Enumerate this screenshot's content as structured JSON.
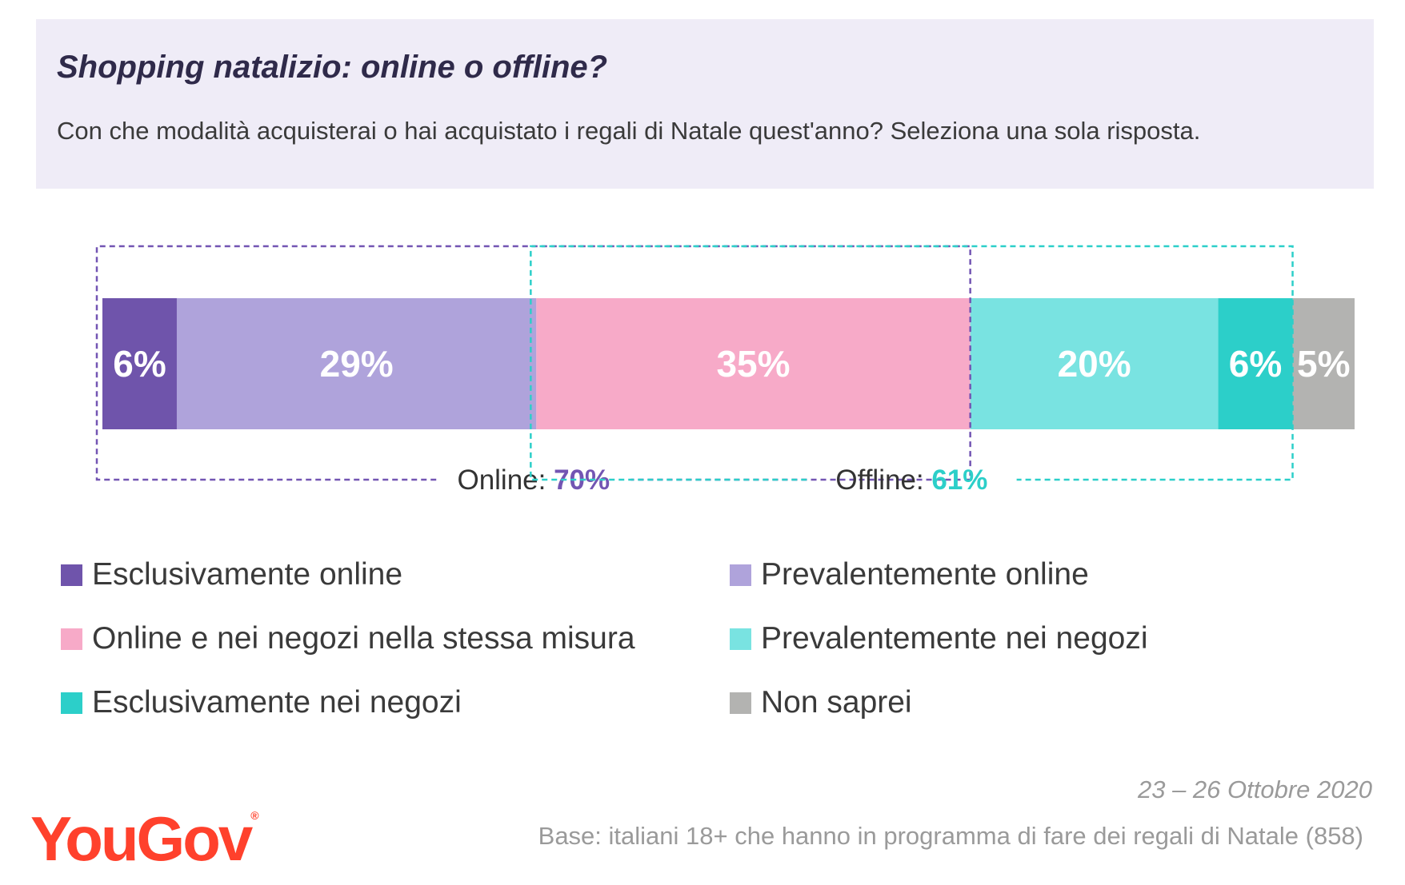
{
  "header": {
    "title": "Shopping natalizio: online o offline?",
    "subtitle": "Con che modalità acquisterai o hai acquistato i regali di Natale quest'anno? Seleziona una sola risposta."
  },
  "chart_data": {
    "type": "bar",
    "orientation": "horizontal",
    "stacked": true,
    "unit": "%",
    "series": [
      {
        "name": "Esclusivamente online",
        "value": 6,
        "label": "6%",
        "color": "#6f54ab"
      },
      {
        "name": "Prevalentemente online",
        "value": 29,
        "label": "29%",
        "color": "#afa3db"
      },
      {
        "name": "Online e nei negozi nella stessa misura",
        "value": 35,
        "label": "35%",
        "color": "#f7aac8"
      },
      {
        "name": "Prevalentemente nei negozi",
        "value": 20,
        "label": "20%",
        "color": "#79e3e1"
      },
      {
        "name": "Esclusivamente nei negozi",
        "value": 6,
        "label": "6%",
        "color": "#2ccfc9"
      },
      {
        "name": "Non saprei",
        "value": 5,
        "label": "5%",
        "color": "#b3b3b1"
      }
    ],
    "groups": [
      {
        "label": "Online:",
        "value_label": "70%",
        "value": 70,
        "color": "#7355b3",
        "start_index": 0,
        "end_index": 2
      },
      {
        "label": "Offline:",
        "value_label": "61%",
        "value": 61,
        "color": "#2ccfc9",
        "start_index": 2,
        "end_index": 4
      }
    ],
    "legend_position": "bottom"
  },
  "footer": {
    "date": "23 – 26 Ottobre 2020",
    "base": "Base: italiani 18+ che hanno in programma di fare dei regali di Natale (858)",
    "logo": "YouGov",
    "logo_mark": "®"
  }
}
